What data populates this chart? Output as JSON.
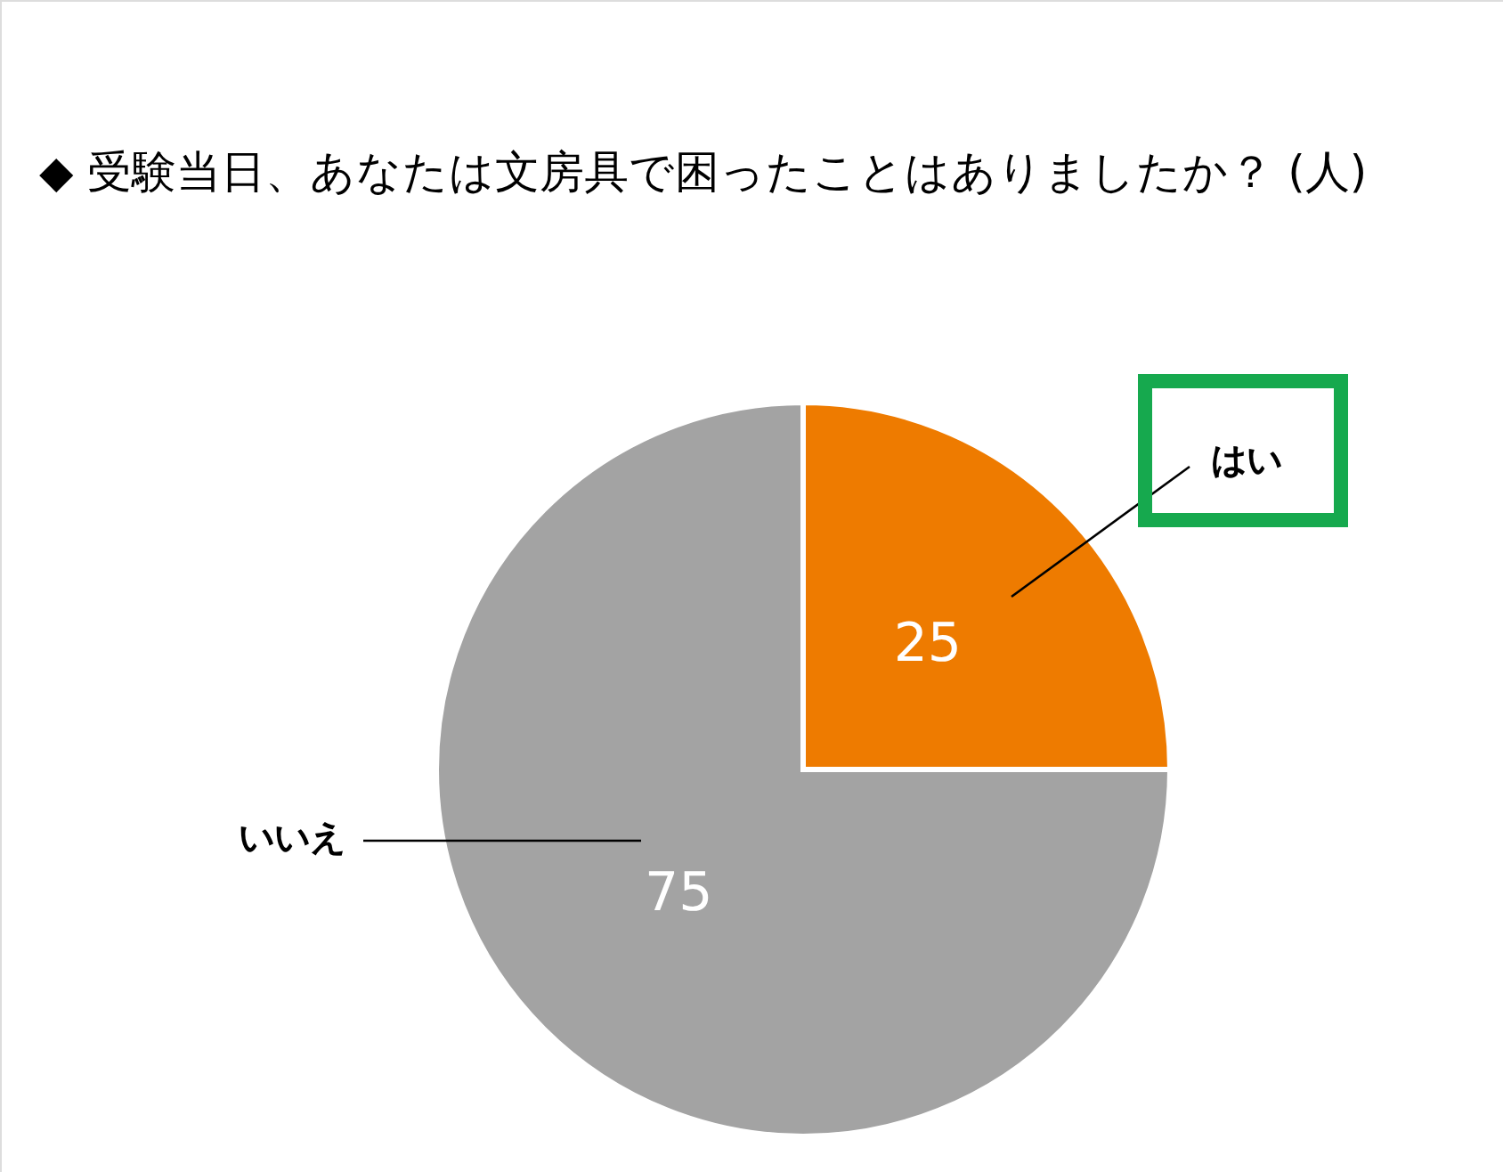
{
  "chart_data": {
    "type": "pie",
    "title": "◆ 受験当日、あなたは文房具で困ったことはありましたか？ (人)",
    "categories": [
      "はい",
      "いいえ"
    ],
    "values": [
      25,
      75
    ],
    "colors": [
      "#ee7b00",
      "#a3a3a3"
    ],
    "data_labels": true
  }
}
